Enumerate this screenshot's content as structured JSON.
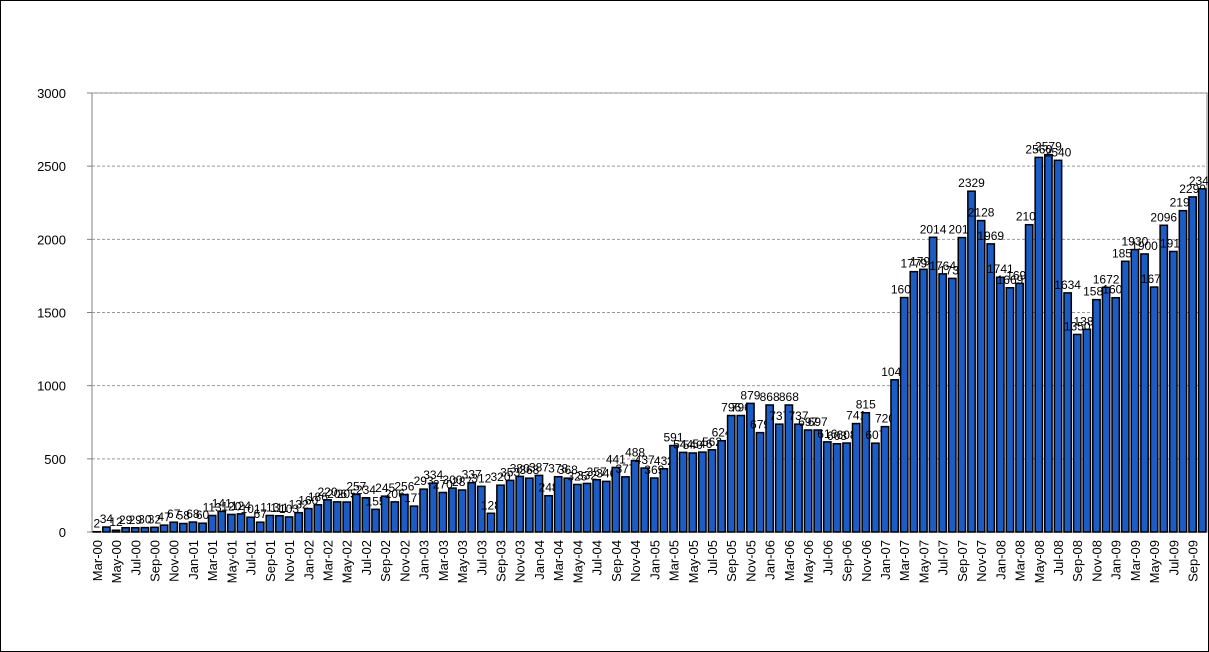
{
  "chart_data": {
    "type": "bar",
    "color": "#1c5cc4",
    "grid": true,
    "ylim": [
      0,
      3000
    ],
    "yticks": [
      0,
      500,
      1000,
      1500,
      2000,
      2500,
      3000
    ],
    "categories": [
      "Mar-00",
      null,
      "May-00",
      null,
      "Jul-00",
      null,
      "Sep-00",
      null,
      "Nov-00",
      null,
      "Jan-01",
      null,
      "Mar-01",
      null,
      "May-01",
      null,
      "Jul-01",
      null,
      "Sep-01",
      null,
      "Nov-01",
      null,
      "Jan-02",
      null,
      "Mar-02",
      null,
      "May-02",
      null,
      "Jul-02",
      null,
      "Sep-02",
      null,
      "Nov-02",
      null,
      "Jan-03",
      null,
      "Mar-03",
      null,
      "May-03",
      null,
      "Jul-03",
      null,
      "Sep-03",
      null,
      "Nov-03",
      null,
      "Jan-04",
      null,
      "Mar-04",
      null,
      "May-04",
      null,
      "Jul-04",
      null,
      "Sep-04",
      null,
      "Nov-04",
      null,
      "Jan-05",
      null,
      "Mar-05",
      null,
      "May-05",
      null,
      "Jul-05",
      null,
      "Sep-05",
      null,
      "Nov-05",
      null,
      "Jan-06",
      null,
      "Mar-06",
      null,
      "May-06",
      null,
      "Jul-06",
      null,
      "Sep-06",
      null,
      "Nov-06",
      null,
      "Jan-07",
      null,
      "Mar-07",
      null,
      "May-07",
      null,
      "Jul-07",
      null,
      "Sep-07",
      null,
      "Nov-07",
      null,
      "Jan-08",
      null,
      "Mar-08",
      null,
      "May-08",
      null,
      "Jul-08",
      null,
      "Sep-08",
      null,
      "Nov-08",
      null,
      "Jan-09",
      null,
      "Mar-09",
      null,
      "May-09",
      null,
      "Jul-09",
      null,
      "Sep-09",
      null
    ],
    "values": [
      2,
      34,
      12,
      29,
      29,
      30,
      32,
      47,
      67,
      58,
      68,
      60,
      113,
      141,
      120,
      124,
      101,
      67,
      113,
      111,
      103,
      132,
      160,
      186,
      220,
      206,
      205,
      257,
      234,
      155,
      245,
      206,
      256,
      177,
      293,
      334,
      270,
      300,
      287,
      337,
      312,
      128,
      320,
      353,
      380,
      368,
      387,
      248,
      378,
      368,
      325,
      332,
      357,
      346,
      441,
      377,
      488,
      437,
      369,
      432,
      591,
      544,
      540,
      546,
      562,
      624,
      796,
      796,
      879,
      679,
      868,
      737,
      868,
      737,
      697,
      697,
      616,
      603,
      608,
      741,
      815,
      607,
      720,
      1040,
      1602,
      1779,
      1795,
      2014,
      1764,
      1733,
      2012,
      2329,
      2128,
      1969,
      1741,
      1669,
      1699,
      2100,
      2560,
      2579,
      2540,
      1634,
      1350,
      1385,
      1588,
      1672,
      1601,
      1850,
      1930,
      1900,
      1674,
      2096,
      1917,
      2196,
      2290,
      2345
    ]
  }
}
